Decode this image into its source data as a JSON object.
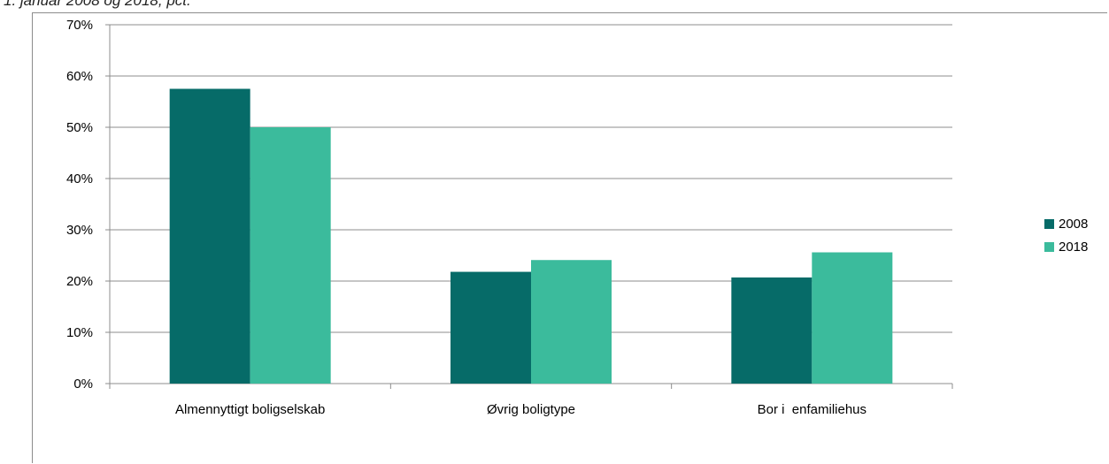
{
  "page": {
    "title_fragment": "1. januar 2008 og 2018, pct."
  },
  "colors": {
    "2008": "#066b68",
    "2018": "#3bbb9c",
    "grid": "#8c8c8c",
    "axis": "#8c8c8c"
  },
  "chart_data": {
    "type": "bar",
    "title": "",
    "xlabel": "",
    "ylabel": "",
    "categories": [
      "Almennyttigt boligselskab",
      "Øvrig boligtype",
      "Bor i  enfamiliehus"
    ],
    "series": [
      {
        "name": "2008",
        "values": [
          57.5,
          21.8,
          20.7
        ]
      },
      {
        "name": "2018",
        "values": [
          50.0,
          24.1,
          25.6
        ]
      }
    ],
    "ylim": [
      0,
      70
    ],
    "yticks": [
      "0%",
      "10%",
      "20%",
      "30%",
      "40%",
      "50%",
      "60%",
      "70%"
    ],
    "grid": true,
    "legend_position": "right"
  }
}
